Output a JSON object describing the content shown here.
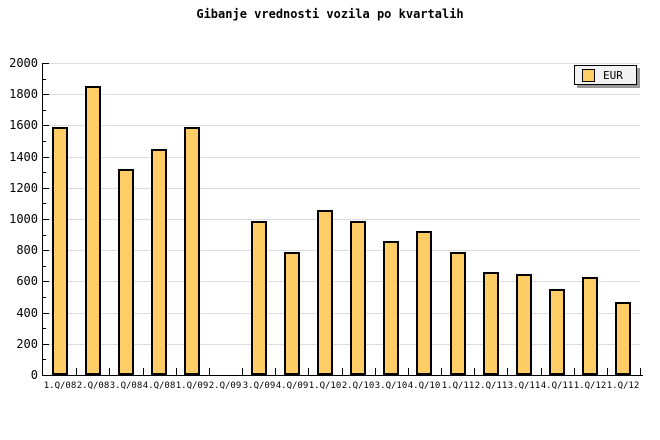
{
  "chart_data": {
    "type": "bar",
    "title": "Gibanje vrednosti vozila po kvartalih",
    "categories": [
      "1.Q/08",
      "2.Q/08",
      "3.Q/08",
      "4.Q/08",
      "1.Q/09",
      "2.Q/09",
      "3.Q/09",
      "4.Q/09",
      "1.Q/10",
      "2.Q/10",
      "3.Q/10",
      "4.Q/10",
      "1.Q/11",
      "2.Q/11",
      "3.Q/11",
      "4.Q/11",
      "1.Q/12",
      "1.Q/12"
    ],
    "series": [
      {
        "name": "EUR",
        "values": [
          1590,
          1850,
          1320,
          1450,
          1590,
          null,
          990,
          790,
          1060,
          990,
          860,
          920,
          790,
          660,
          650,
          550,
          630,
          470
        ]
      }
    ],
    "xlabel": "",
    "ylabel": "",
    "ylim": [
      0,
      2000
    ],
    "ytick_step": 200,
    "yminor_tick_step": 100,
    "ytick_labels": [
      "0",
      "200",
      "400",
      "600",
      "800",
      "1000",
      "1200",
      "1400",
      "1600",
      "1800",
      "2000"
    ],
    "grid": true,
    "legend_position": "top-right",
    "colors": {
      "bar_fill": "#FFCC66",
      "bar_border": "#000000",
      "grid": "#DCDCDC",
      "axis": "#000000",
      "legend_bg": "#F2F2F2",
      "legend_shadow": "#999999",
      "background": "#FFFFFF",
      "text": "#000000"
    }
  }
}
